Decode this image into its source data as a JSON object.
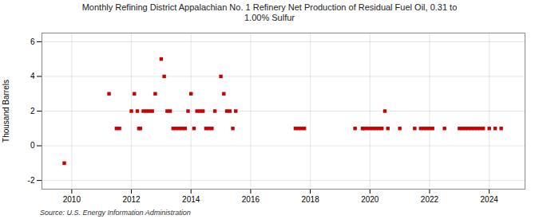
{
  "chart_data": {
    "type": "scatter",
    "title": "Monthly Refining District Appalachian No. 1 Refinery Net Production of Residual Fuel Oil, 0.31 to\n1.00% Sulfur",
    "ylabel": "Thousand Barrels",
    "source": "Source: U.S. Energy Information Administration",
    "x": [
      2009.75,
      2011.25,
      2011.5,
      2011.6,
      2012.0,
      2012.1,
      2012.2,
      2012.25,
      2012.3,
      2012.4,
      2012.5,
      2012.6,
      2012.7,
      2012.8,
      2013.0,
      2013.1,
      2013.2,
      2013.3,
      2013.4,
      2013.5,
      2013.6,
      2013.7,
      2013.8,
      2013.9,
      2014.0,
      2014.1,
      2014.2,
      2014.3,
      2014.4,
      2014.5,
      2014.6,
      2014.7,
      2014.8,
      2015.0,
      2015.1,
      2015.2,
      2015.3,
      2015.4,
      2015.5,
      2017.5,
      2017.6,
      2017.7,
      2017.8,
      2019.5,
      2019.75,
      2019.8,
      2019.9,
      2020.0,
      2020.1,
      2020.2,
      2020.3,
      2020.4,
      2020.5,
      2020.6,
      2021.0,
      2021.5,
      2021.7,
      2021.8,
      2021.9,
      2022.0,
      2022.1,
      2022.5,
      2023.0,
      2023.1,
      2023.2,
      2023.3,
      2023.4,
      2023.5,
      2023.6,
      2023.7,
      2023.8,
      2024.0,
      2024.2,
      2024.4
    ],
    "values": [
      -1,
      3,
      1,
      1,
      2,
      3,
      2,
      1,
      1,
      2,
      2,
      2,
      2,
      3,
      5,
      4,
      2,
      2,
      1,
      1,
      1,
      1,
      1,
      2,
      3,
      1,
      2,
      2,
      2,
      1,
      1,
      1,
      2,
      4,
      3,
      2,
      2,
      1,
      2,
      1,
      1,
      1,
      1,
      1,
      1,
      1,
      1,
      1,
      1,
      1,
      1,
      1,
      2,
      1,
      1,
      1,
      1,
      1,
      1,
      1,
      1,
      1,
      1,
      1,
      1,
      1,
      1,
      1,
      1,
      1,
      1,
      1,
      1,
      1
    ],
    "color": "#cc0000",
    "marker": "square",
    "xlim": [
      2009.0,
      2025.2
    ],
    "xticks": [
      2010,
      2012,
      2014,
      2016,
      2018,
      2020,
      2022,
      2024
    ],
    "ylim": [
      -2.5,
      6.5
    ],
    "yticks": [
      -2,
      0,
      2,
      4,
      6
    ],
    "grid": true
  }
}
